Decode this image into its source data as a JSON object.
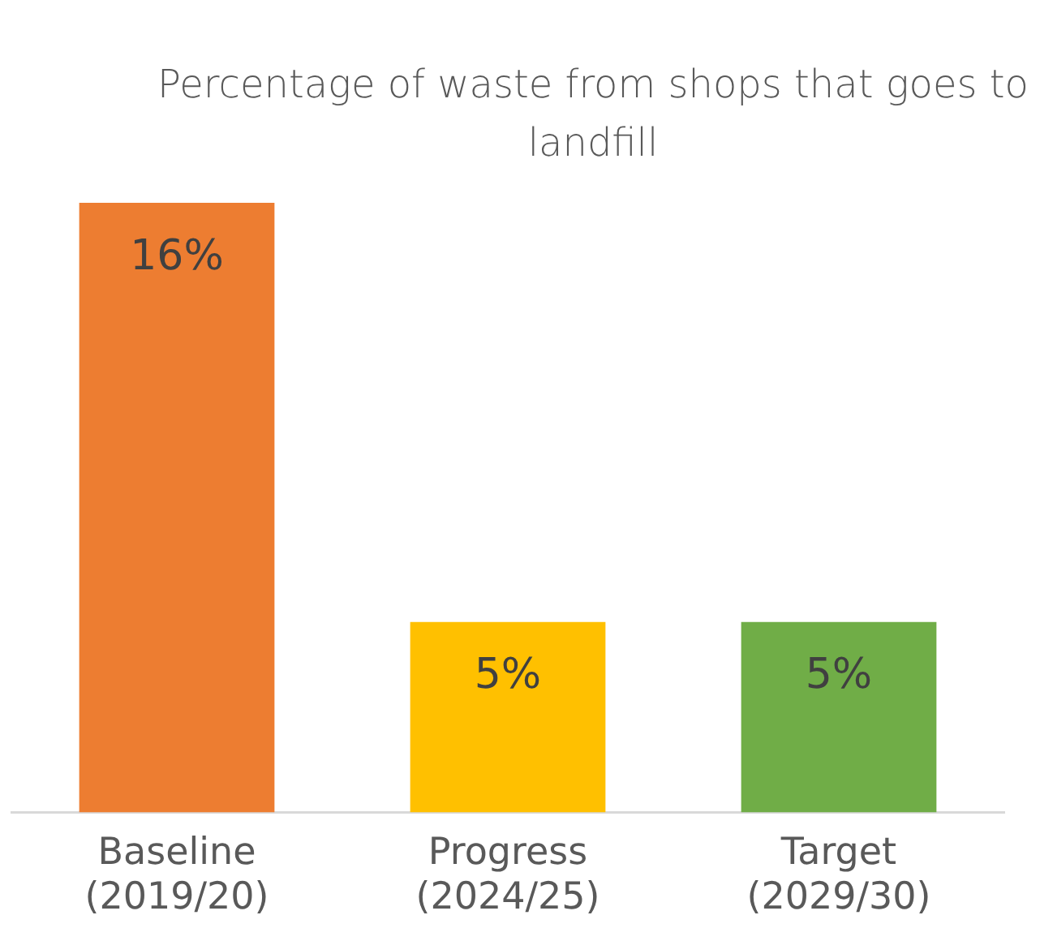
{
  "chart_data": {
    "type": "bar",
    "title": "Percentage of waste from shops that goes to landfill",
    "categories": [
      "Baseline (2019/20)",
      "Progress (2024/25)",
      "Target (2029/30)"
    ],
    "values": [
      16,
      5,
      5
    ],
    "colors": [
      "#ed7d31",
      "#ffc000",
      "#70ad47"
    ],
    "value_labels": [
      "16%",
      "5%",
      "5%"
    ],
    "grid": false,
    "legend": false
  }
}
